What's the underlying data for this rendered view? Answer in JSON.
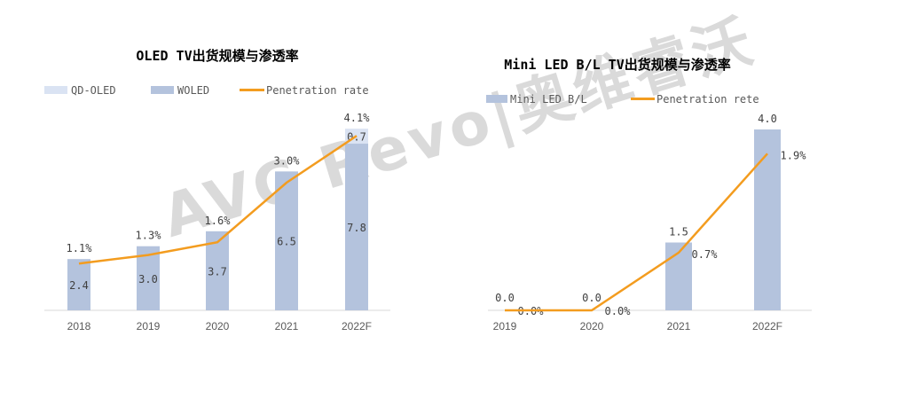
{
  "watermark": "AVC Revo|奥维睿沃",
  "colors": {
    "qd_oled": "#dae3f3",
    "woled": "#b4c3dd",
    "line": "#f39c1f",
    "axis": "#d9d9d9"
  },
  "chart_data": [
    {
      "type": "bar",
      "title": "OLED TV出货规模与渗透率",
      "categories": [
        "2018",
        "2019",
        "2020",
        "2021",
        "2022F"
      ],
      "series": [
        {
          "name": "WOLED",
          "type": "stacked-bar",
          "values": [
            2.4,
            3.0,
            3.7,
            6.5,
            7.8
          ]
        },
        {
          "name": "QD-OLED",
          "type": "stacked-bar",
          "values": [
            0,
            0,
            0,
            0,
            0.7
          ]
        },
        {
          "name": "Penetration rate",
          "type": "line",
          "values": [
            1.1,
            1.3,
            1.6,
            3.0,
            4.1
          ],
          "labels": [
            "1.1%",
            "1.3%",
            "1.6%",
            "3.0%",
            "4.1%"
          ]
        }
      ],
      "legend": [
        "QD-OLED",
        "WOLED",
        "Penetration rate"
      ],
      "legend_position": "top",
      "grid": false
    },
    {
      "type": "bar",
      "title": "Mini LED B/L TV出货规模与渗透率",
      "categories": [
        "2019",
        "2020",
        "2021",
        "2022F"
      ],
      "series": [
        {
          "name": "Mini LED B/L",
          "type": "bar",
          "values": [
            0.0,
            0.0,
            1.5,
            4.0
          ],
          "labels": [
            "0.0",
            "0.0",
            "1.5",
            "4.0"
          ]
        },
        {
          "name": "Penetration rete",
          "type": "line",
          "values": [
            0.0,
            0.0,
            0.7,
            1.9
          ],
          "labels": [
            "0.0%",
            "0.0%",
            "0.7%",
            "1.9%"
          ]
        }
      ],
      "legend": [
        "Mini LED B/L",
        "Penetration rete"
      ],
      "legend_position": "top",
      "grid": false
    }
  ]
}
